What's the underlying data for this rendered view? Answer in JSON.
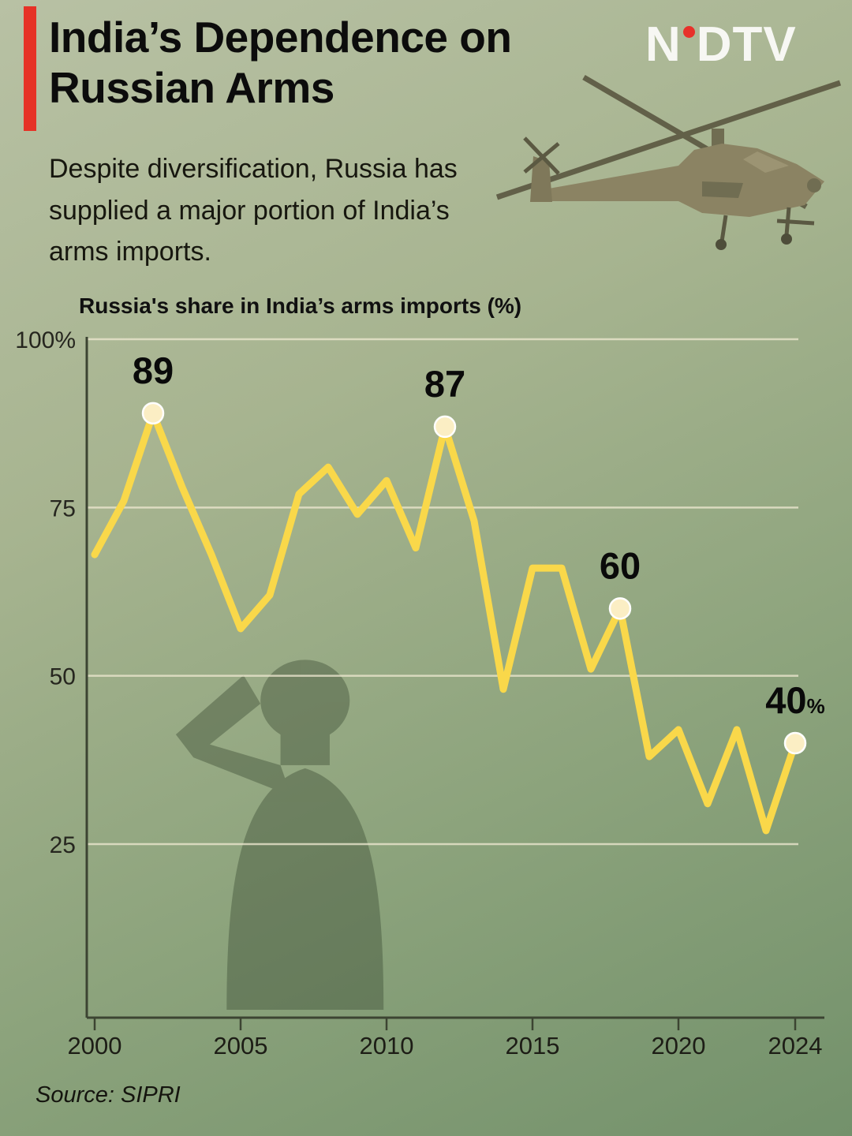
{
  "header": {
    "title_line1": "India’s Dependence on",
    "title_line2": "Russian Arms",
    "subtitle": "Despite diversification, Russia has supplied a major portion of India’s arms imports.",
    "logo_n": "N",
    "logo_dtv": "DTV",
    "accent_color": "#e63226",
    "logo_dot_color": "#e8312a"
  },
  "chart_data": {
    "type": "line",
    "title": "Russia's share in India’s arms imports (%)",
    "x": [
      2000,
      2001,
      2002,
      2003,
      2004,
      2005,
      2006,
      2007,
      2008,
      2009,
      2010,
      2011,
      2012,
      2013,
      2014,
      2015,
      2016,
      2017,
      2018,
      2019,
      2020,
      2021,
      2022,
      2023,
      2024
    ],
    "values": [
      68,
      76,
      89,
      78,
      68,
      57,
      62,
      77,
      81,
      74,
      79,
      69,
      87,
      73,
      48,
      66,
      66,
      51,
      60,
      38,
      42,
      31,
      42,
      27,
      40
    ],
    "xticks": [
      2000,
      2005,
      2010,
      2015,
      2020,
      2024
    ],
    "yticks": [
      100,
      75,
      50,
      25
    ],
    "ytick_labels": [
      "100%",
      "75",
      "50",
      "25"
    ],
    "ylim": [
      20,
      100
    ],
    "grid": true,
    "legend": "none",
    "line_color": "#f9d84a",
    "marker_color": "#fbeec4",
    "annotations": [
      {
        "x": 2002,
        "value": 89,
        "label": "89"
      },
      {
        "x": 2012,
        "value": 87,
        "label": "87"
      },
      {
        "x": 2018,
        "value": 60,
        "label": "60"
      },
      {
        "x": 2024,
        "value": 40,
        "label": "40",
        "suffix": "%"
      }
    ]
  },
  "footer": {
    "source": "Source: SIPRI"
  }
}
